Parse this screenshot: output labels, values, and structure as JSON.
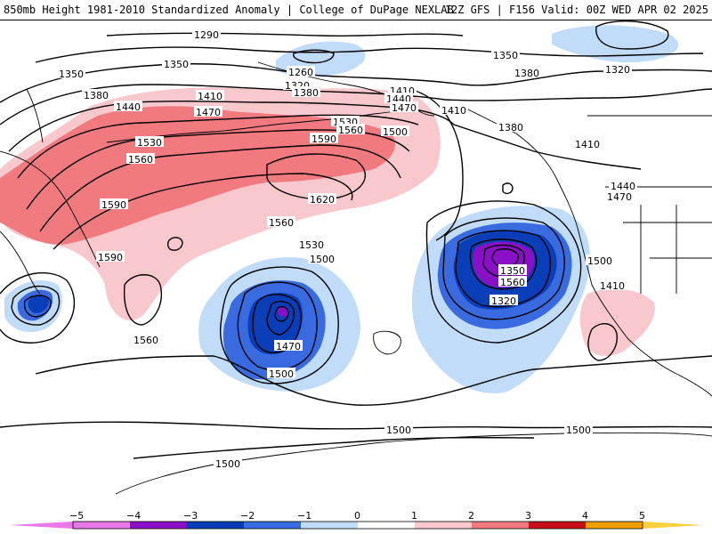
{
  "header": {
    "left": "850mb Height 1981-2010 Standardized Anomaly | College of DuPage NEXLAB",
    "right": "12Z GFS | F156 Valid: 00Z WED APR 02 2025"
  },
  "contour_labels": [
    "1290",
    "1320",
    "1350",
    "1380",
    "1410",
    "1440",
    "1470",
    "1530",
    "1560",
    "1590",
    "1620",
    "1260",
    "1320",
    "1380",
    "1410",
    "1440",
    "1470",
    "1500",
    "1530",
    "1560",
    "1590",
    "1350",
    "1380",
    "1320",
    "1410",
    "1380",
    "1410",
    "1440",
    "1470",
    "1500",
    "1410",
    "1320",
    "1350",
    "1560",
    "1590",
    "1560",
    "1530",
    "1500",
    "1470",
    "1500",
    "1560",
    "1500",
    "1500",
    "1500",
    "1500"
  ],
  "colorbar": {
    "ticks": [
      "−5",
      "−4",
      "−3",
      "−2",
      "−1",
      "0",
      "1",
      "2",
      "3",
      "4",
      "5"
    ],
    "colors": {
      "c_m5": "#e879e8",
      "c_m4": "#8a10c8",
      "c_m3": "#0a3db8",
      "c_m2": "#3a6ae0",
      "c_m1": "#c0dcf8",
      "c_0": "#ffffff",
      "c_p1": "#f8c8cc",
      "c_p2": "#f07a7e",
      "c_p3": "#c81018",
      "c_p4": "#f0a000",
      "c_p5": "#f8d040"
    }
  }
}
